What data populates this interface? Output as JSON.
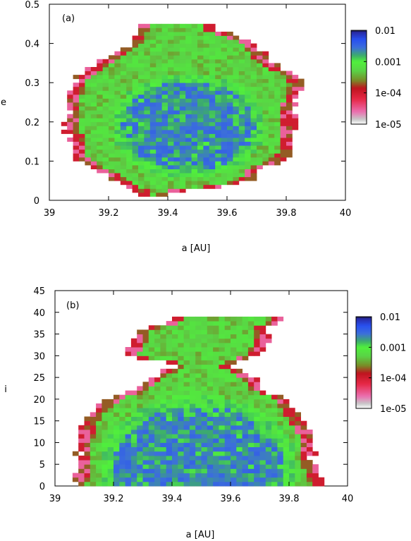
{
  "chart_data": [
    {
      "type": "heatmap",
      "panel_label": "(a)",
      "xlabel": "a [AU]",
      "ylabel": "e",
      "xlim": [
        39,
        40
      ],
      "ylim": [
        0,
        0.5
      ],
      "xticks": [
        "39",
        "39.2",
        "39.4",
        "39.6",
        "39.8",
        "40"
      ],
      "xtick_values": [
        39,
        39.2,
        39.4,
        39.6,
        39.8,
        40
      ],
      "yticks": [
        "0",
        "0.1",
        "0.2",
        "0.3",
        "0.4",
        "0.5"
      ],
      "ytick_values": [
        0,
        0.1,
        0.2,
        0.3,
        0.4,
        0.5
      ],
      "grid": false,
      "colorbar": {
        "scale": "log",
        "range": [
          1e-05,
          0.01
        ],
        "ticks": [
          "0.01",
          "0.001",
          "1e-04",
          "1e-05"
        ],
        "tick_values": [
          0.01,
          0.001,
          0.0001,
          1e-05
        ]
      },
      "region": {
        "a_step": 0.02,
        "y_step": 0.01,
        "extent": [
          [
            0.02,
            39.3,
            39.4
          ],
          [
            0.04,
            39.25,
            39.62
          ],
          [
            0.06,
            39.2,
            39.7
          ],
          [
            0.08,
            39.15,
            39.72
          ],
          [
            0.1,
            39.1,
            39.78
          ],
          [
            0.12,
            39.08,
            39.82
          ],
          [
            0.14,
            39.07,
            39.82
          ],
          [
            0.16,
            39.07,
            39.82
          ],
          [
            0.18,
            39.06,
            39.83
          ],
          [
            0.2,
            39.06,
            39.83
          ],
          [
            0.22,
            39.06,
            39.83
          ],
          [
            0.24,
            39.06,
            39.83
          ],
          [
            0.26,
            39.06,
            39.84
          ],
          [
            0.28,
            39.07,
            39.85
          ],
          [
            0.3,
            39.08,
            39.86
          ],
          [
            0.32,
            39.1,
            39.84
          ],
          [
            0.34,
            39.14,
            39.78
          ],
          [
            0.36,
            39.18,
            39.74
          ],
          [
            0.38,
            39.22,
            39.72
          ],
          [
            0.4,
            39.28,
            39.7
          ],
          [
            0.42,
            39.28,
            39.62
          ],
          [
            0.44,
            39.3,
            39.56
          ]
        ],
        "core": {
          "center": [
            39.47,
            0.19
          ],
          "radius_a": 0.26,
          "radius_y": 0.135
        },
        "core_levels": [
          0.001,
          0.004
        ],
        "edge_levels": [
          0.0002,
          0.0001,
          3e-05
        ]
      }
    },
    {
      "type": "heatmap",
      "panel_label": "(b)",
      "xlabel": "a [AU]",
      "ylabel": "i",
      "xlim": [
        39,
        40
      ],
      "ylim": [
        0,
        45
      ],
      "xticks": [
        "39",
        "39.2",
        "39.4",
        "39.6",
        "39.8",
        "40"
      ],
      "xtick_values": [
        39,
        39.2,
        39.4,
        39.6,
        39.8,
        40
      ],
      "yticks": [
        "0",
        "5",
        "10",
        "15",
        "20",
        "25",
        "30",
        "35",
        "40",
        "45"
      ],
      "ytick_values": [
        0,
        5,
        10,
        15,
        20,
        25,
        30,
        35,
        40,
        45
      ],
      "grid": false,
      "colorbar": {
        "scale": "log",
        "range": [
          1e-05,
          0.01
        ],
        "ticks": [
          "0.01",
          "0.001",
          "1e-04",
          "1e-05"
        ],
        "tick_values": [
          0.01,
          0.001,
          0.0001,
          1e-05
        ]
      },
      "region": {
        "a_step": 0.02,
        "y_step": 1,
        "extent": [
          [
            0.5,
            39.06,
            39.92
          ],
          [
            2,
            39.07,
            39.9
          ],
          [
            4,
            39.08,
            39.9
          ],
          [
            6,
            39.08,
            39.88
          ],
          [
            8,
            39.08,
            39.88
          ],
          [
            10,
            39.08,
            39.88
          ],
          [
            12,
            39.09,
            39.88
          ],
          [
            14,
            39.1,
            39.86
          ],
          [
            16,
            39.12,
            39.84
          ],
          [
            18,
            39.14,
            39.82
          ],
          [
            20,
            39.18,
            39.8
          ],
          [
            22,
            39.28,
            39.72
          ],
          [
            24,
            39.3,
            39.7
          ],
          [
            26,
            39.36,
            39.66
          ],
          [
            28,
            39.42,
            39.6
          ],
          [
            30,
            39.24,
            39.7
          ],
          [
            32,
            39.25,
            39.72
          ],
          [
            34,
            39.28,
            39.74
          ],
          [
            36,
            39.28,
            39.72
          ],
          [
            38,
            39.4,
            39.78
          ]
        ],
        "core": {
          "center": [
            39.49,
            4.0
          ],
          "radius_a": 0.34,
          "radius_y": 17.0
        },
        "core_levels": [
          0.001,
          0.004
        ],
        "edge_levels": [
          0.0002,
          0.0001,
          3e-05
        ]
      }
    }
  ]
}
